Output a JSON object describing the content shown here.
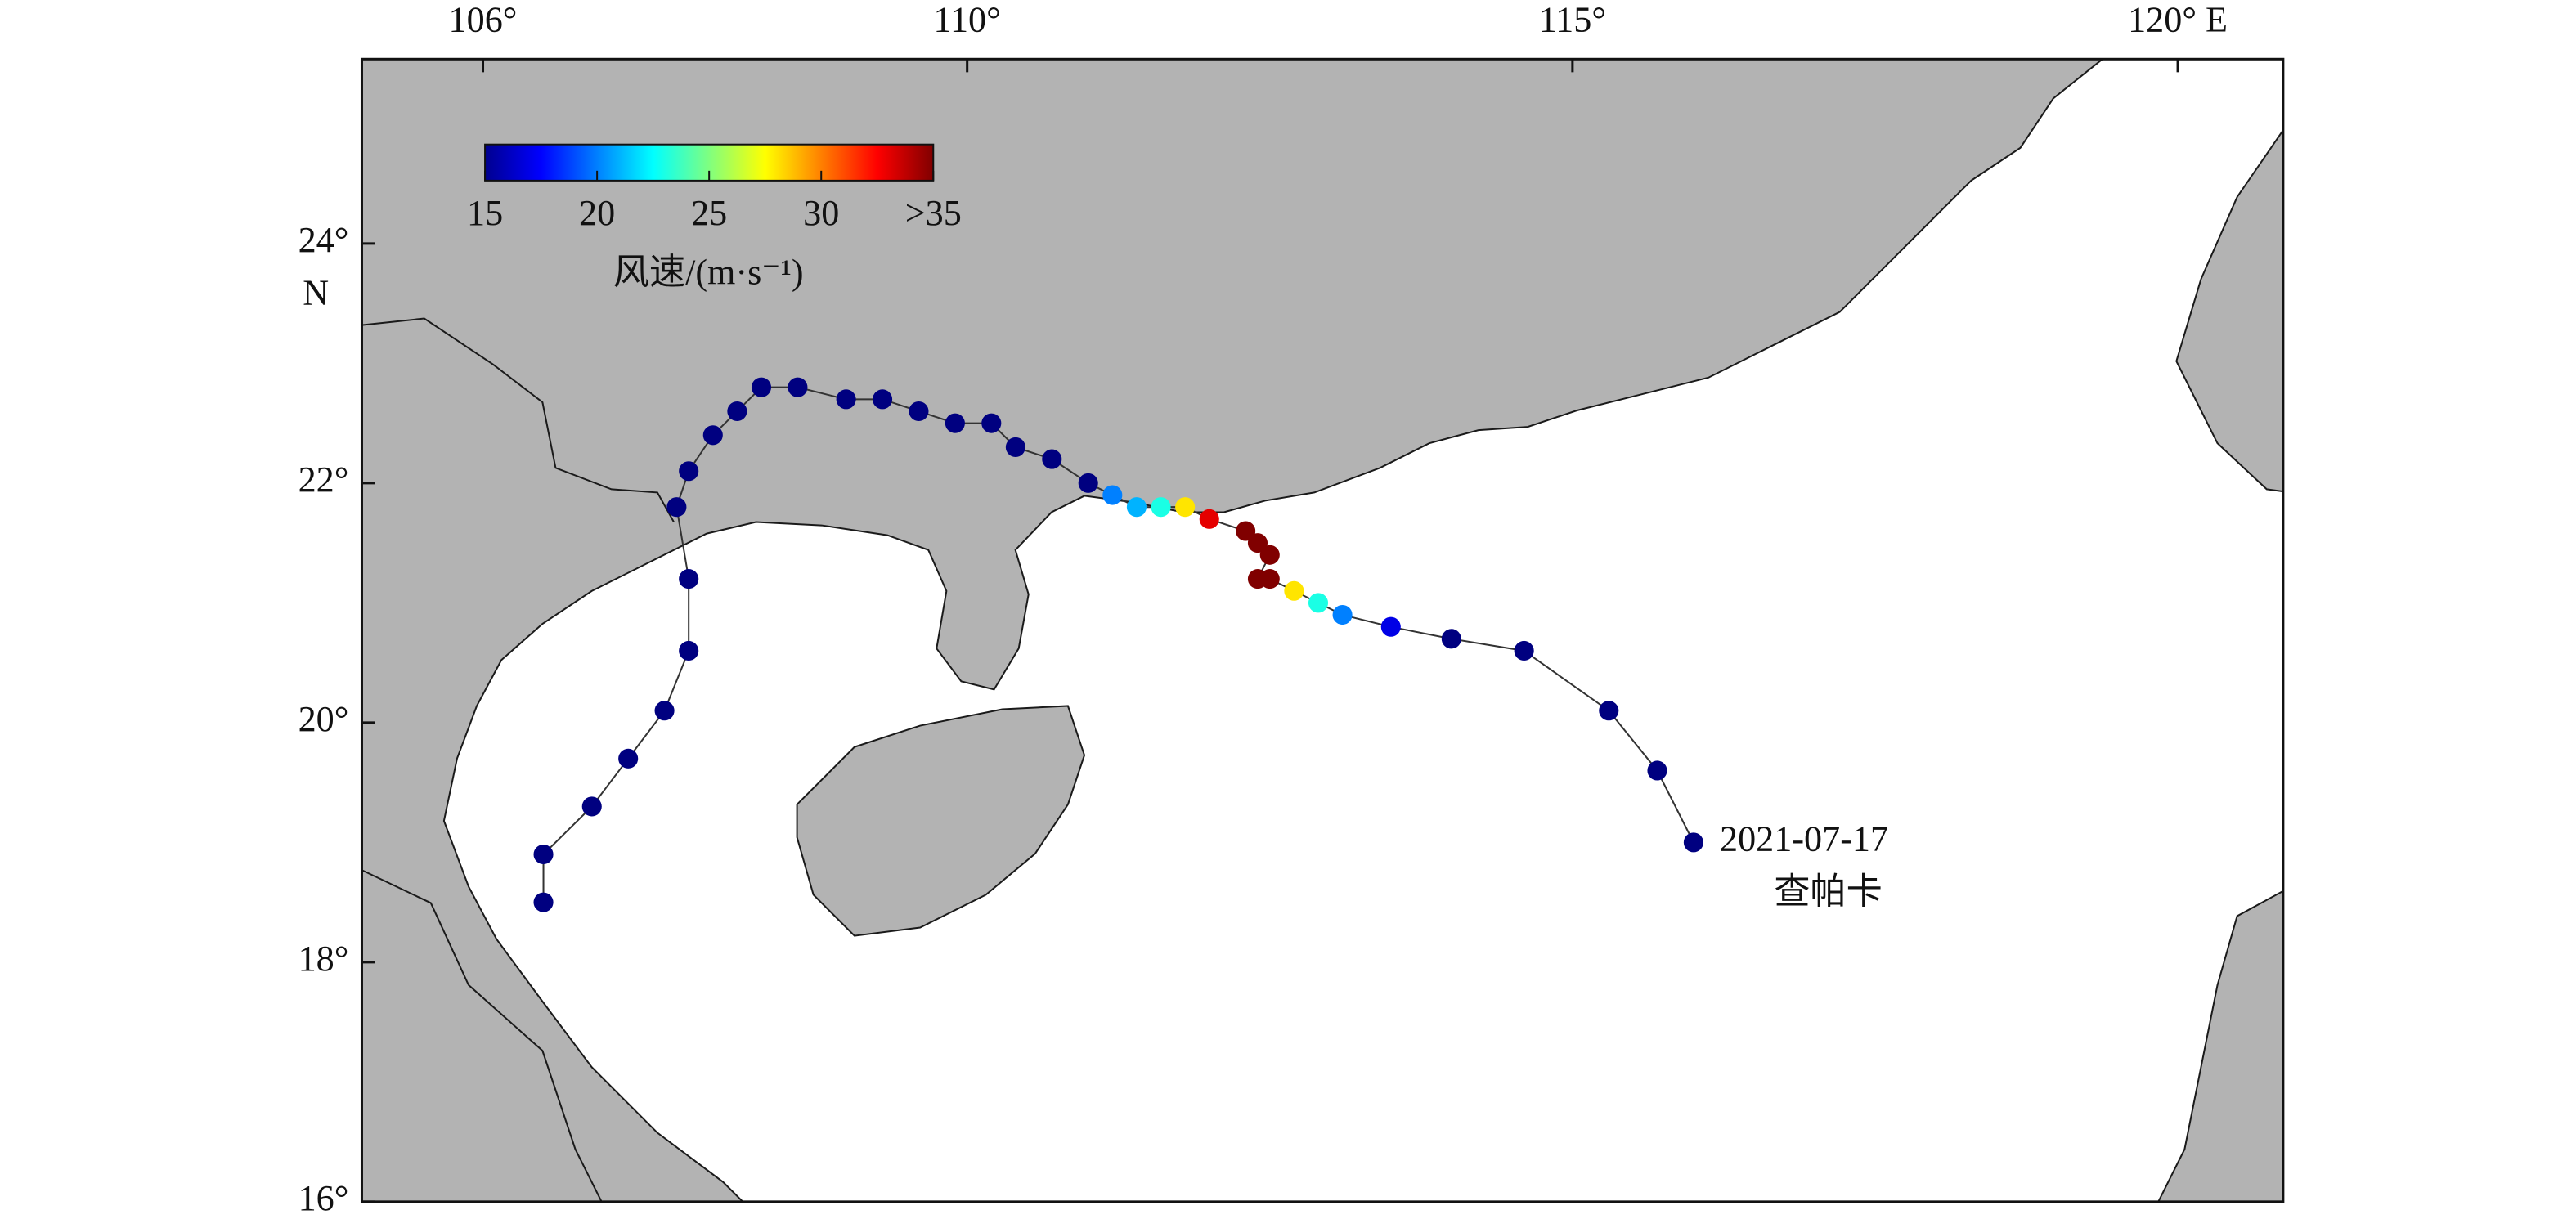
{
  "chart_data": {
    "type": "track",
    "xlim": [
      105,
      120.87
    ],
    "ylim": [
      16,
      25.54
    ],
    "xticks": [
      {
        "value": 106,
        "label": "106°"
      },
      {
        "value": 110,
        "label": "110°"
      },
      {
        "value": 115,
        "label": "115°"
      },
      {
        "value": 120,
        "label": "120° E"
      }
    ],
    "yticks": [
      {
        "value": 16,
        "label": "16°"
      },
      {
        "value": 18,
        "label": "18°"
      },
      {
        "value": 20,
        "label": "20°"
      },
      {
        "value": 22,
        "label": "22°"
      },
      {
        "value": 24,
        "label": "24°"
      }
    ],
    "ylabel": "N",
    "track": {
      "color": "#333333",
      "lon": [
        116.0,
        115.7,
        115.3,
        114.6,
        114.0,
        113.5,
        113.1,
        112.9,
        112.7,
        112.5,
        112.4,
        112.5,
        112.4,
        112.3,
        112.0,
        111.8,
        111.6,
        111.4,
        111.2,
        111.0,
        110.7,
        110.4,
        110.2,
        109.9,
        109.6,
        109.3,
        109.0,
        108.6,
        108.3,
        108.1,
        107.9,
        107.7,
        107.6,
        107.7,
        107.7,
        107.5,
        107.2,
        106.9,
        106.5,
        106.5
      ],
      "lat": [
        19.0,
        19.6,
        20.1,
        20.6,
        20.7,
        20.8,
        20.9,
        21.0,
        21.1,
        21.2,
        21.2,
        21.4,
        21.5,
        21.6,
        21.7,
        21.8,
        21.8,
        21.8,
        21.9,
        22.0,
        22.2,
        22.3,
        22.5,
        22.5,
        22.6,
        22.7,
        22.7,
        22.8,
        22.8,
        22.6,
        22.4,
        22.1,
        21.8,
        21.2,
        20.6,
        20.1,
        19.7,
        19.3,
        18.9,
        18.5
      ],
      "wind": [
        15,
        15,
        15,
        15,
        15,
        17,
        20,
        23,
        28,
        36,
        36,
        36,
        36,
        36,
        33,
        28,
        23,
        21,
        20,
        15,
        15,
        15,
        15,
        15,
        15,
        15,
        15,
        15,
        15,
        15,
        15,
        15,
        15,
        15,
        15,
        15,
        15,
        15,
        15,
        15
      ]
    },
    "annotations": [
      "2021-07-17",
      "查帕卡"
    ],
    "colorbar": {
      "title": "风速/(m·s⁻¹)",
      "clim": [
        15,
        35
      ],
      "ticks": [
        15,
        20,
        25,
        30,
        {
          "value": 35,
          "label": ">35"
        }
      ]
    }
  }
}
